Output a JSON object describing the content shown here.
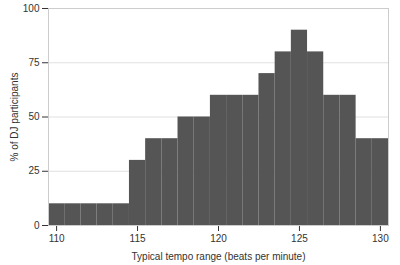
{
  "chart_data": {
    "type": "histogram",
    "x_label": "Typical tempo range (beats per minute)",
    "y_label": "% of DJ participants",
    "bins": [
      109.5,
      110.5,
      111.5,
      112.5,
      113.5,
      114.5,
      115.5,
      116.5,
      117.5,
      118.5,
      119.5,
      120.5,
      121.5,
      122.5,
      123.5,
      124.5,
      125.5,
      126.5,
      127.5,
      128.5,
      129.5,
      130.5
    ],
    "values": [
      10,
      10,
      10,
      10,
      10,
      30,
      40,
      40,
      50,
      50,
      60,
      60,
      60,
      70,
      80,
      90,
      80,
      60,
      60,
      40,
      40
    ],
    "color": "#555555",
    "xlim": [
      109.5,
      130.5
    ],
    "xticks": [
      110,
      115,
      120,
      125,
      130
    ],
    "ylim": [
      0,
      100
    ],
    "yticks": [
      0,
      25,
      50,
      75,
      100
    ],
    "grid": true
  }
}
